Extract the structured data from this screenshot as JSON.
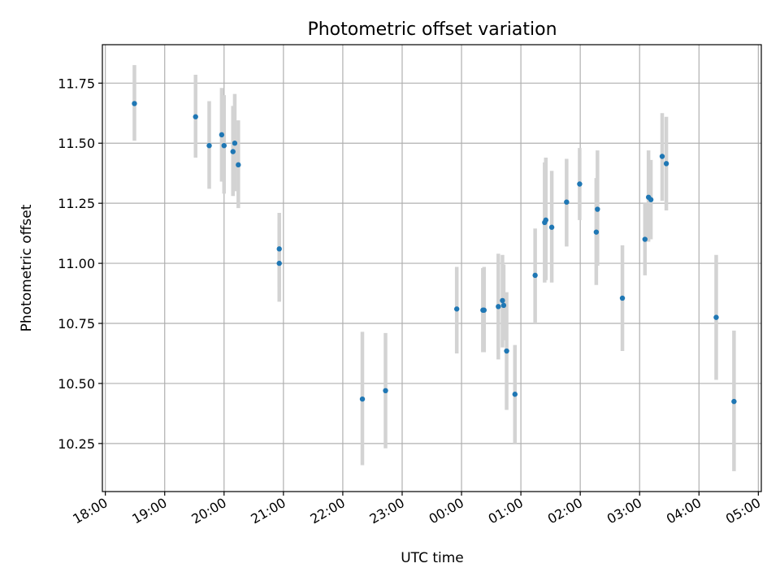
{
  "chart_data": {
    "type": "scatter",
    "title": "Photometric offset variation",
    "xlabel": "UTC time",
    "ylabel": "Photometric offset",
    "grid": true,
    "x_unit": "hours",
    "xlim": [
      -0.05,
      11.05
    ],
    "ylim": [
      10.05,
      11.91
    ],
    "x_ticks": [
      {
        "value": 0,
        "label": "18:00"
      },
      {
        "value": 1,
        "label": "19:00"
      },
      {
        "value": 2,
        "label": "20:00"
      },
      {
        "value": 3,
        "label": "21:00"
      },
      {
        "value": 4,
        "label": "22:00"
      },
      {
        "value": 5,
        "label": "23:00"
      },
      {
        "value": 6,
        "label": "00:00"
      },
      {
        "value": 7,
        "label": "01:00"
      },
      {
        "value": 8,
        "label": "02:00"
      },
      {
        "value": 9,
        "label": "03:00"
      },
      {
        "value": 10,
        "label": "04:00"
      },
      {
        "value": 11,
        "label": "05:00"
      }
    ],
    "y_ticks": [
      {
        "value": 10.25,
        "label": "10.25"
      },
      {
        "value": 10.5,
        "label": "10.50"
      },
      {
        "value": 10.75,
        "label": "10.75"
      },
      {
        "value": 11.0,
        "label": "11.00"
      },
      {
        "value": 11.25,
        "label": "11.25"
      },
      {
        "value": 11.5,
        "label": "11.50"
      },
      {
        "value": 11.75,
        "label": "11.75"
      }
    ],
    "points": [
      {
        "x": 0.49,
        "y": 11.665,
        "ylo": 11.51,
        "yhi": 11.825
      },
      {
        "x": 1.52,
        "y": 11.61,
        "ylo": 11.44,
        "yhi": 11.785
      },
      {
        "x": 1.75,
        "y": 11.49,
        "ylo": 11.31,
        "yhi": 11.675
      },
      {
        "x": 1.96,
        "y": 11.535,
        "ylo": 11.34,
        "yhi": 11.73
      },
      {
        "x": 2.0,
        "y": 11.49,
        "ylo": 11.29,
        "yhi": 11.7
      },
      {
        "x": 2.15,
        "y": 11.465,
        "ylo": 11.28,
        "yhi": 11.655
      },
      {
        "x": 2.18,
        "y": 11.5,
        "ylo": 11.3,
        "yhi": 11.705
      },
      {
        "x": 2.24,
        "y": 11.41,
        "ylo": 11.23,
        "yhi": 11.595
      },
      {
        "x": 2.93,
        "y": 11.06,
        "ylo": 10.9,
        "yhi": 11.21
      },
      {
        "x": 2.93,
        "y": 11.0,
        "ylo": 10.84,
        "yhi": 11.165
      },
      {
        "x": 4.33,
        "y": 10.435,
        "ylo": 10.16,
        "yhi": 10.715
      },
      {
        "x": 4.72,
        "y": 10.47,
        "ylo": 10.23,
        "yhi": 10.71
      },
      {
        "x": 5.92,
        "y": 10.81,
        "ylo": 10.625,
        "yhi": 10.985
      },
      {
        "x": 6.36,
        "y": 10.805,
        "ylo": 10.63,
        "yhi": 10.98
      },
      {
        "x": 6.38,
        "y": 10.805,
        "ylo": 10.63,
        "yhi": 10.985
      },
      {
        "x": 6.62,
        "y": 10.82,
        "ylo": 10.6,
        "yhi": 11.04
      },
      {
        "x": 6.69,
        "y": 10.845,
        "ylo": 10.65,
        "yhi": 11.035
      },
      {
        "x": 6.71,
        "y": 10.825,
        "ylo": 10.68,
        "yhi": 10.995
      },
      {
        "x": 6.76,
        "y": 10.635,
        "ylo": 10.39,
        "yhi": 10.88
      },
      {
        "x": 6.9,
        "y": 10.455,
        "ylo": 10.25,
        "yhi": 10.66
      },
      {
        "x": 7.24,
        "y": 10.95,
        "ylo": 10.75,
        "yhi": 11.145
      },
      {
        "x": 7.4,
        "y": 11.17,
        "ylo": 10.92,
        "yhi": 11.42
      },
      {
        "x": 7.42,
        "y": 11.18,
        "ylo": 10.93,
        "yhi": 11.44
      },
      {
        "x": 7.52,
        "y": 11.15,
        "ylo": 10.92,
        "yhi": 11.385
      },
      {
        "x": 7.77,
        "y": 11.255,
        "ylo": 11.07,
        "yhi": 11.435
      },
      {
        "x": 7.99,
        "y": 11.33,
        "ylo": 11.18,
        "yhi": 11.48
      },
      {
        "x": 8.27,
        "y": 11.13,
        "ylo": 10.91,
        "yhi": 11.355
      },
      {
        "x": 8.29,
        "y": 11.225,
        "ylo": 10.99,
        "yhi": 11.47
      },
      {
        "x": 8.71,
        "y": 10.855,
        "ylo": 10.635,
        "yhi": 11.075
      },
      {
        "x": 9.09,
        "y": 11.1,
        "ylo": 10.95,
        "yhi": 11.25
      },
      {
        "x": 9.15,
        "y": 11.275,
        "ylo": 11.09,
        "yhi": 11.47
      },
      {
        "x": 9.19,
        "y": 11.265,
        "ylo": 11.1,
        "yhi": 11.43
      },
      {
        "x": 9.38,
        "y": 11.445,
        "ylo": 11.26,
        "yhi": 11.625
      },
      {
        "x": 9.45,
        "y": 11.415,
        "ylo": 11.22,
        "yhi": 11.61
      },
      {
        "x": 10.29,
        "y": 10.775,
        "ylo": 10.515,
        "yhi": 11.035
      },
      {
        "x": 10.59,
        "y": 10.425,
        "ylo": 10.135,
        "yhi": 10.72
      }
    ]
  }
}
